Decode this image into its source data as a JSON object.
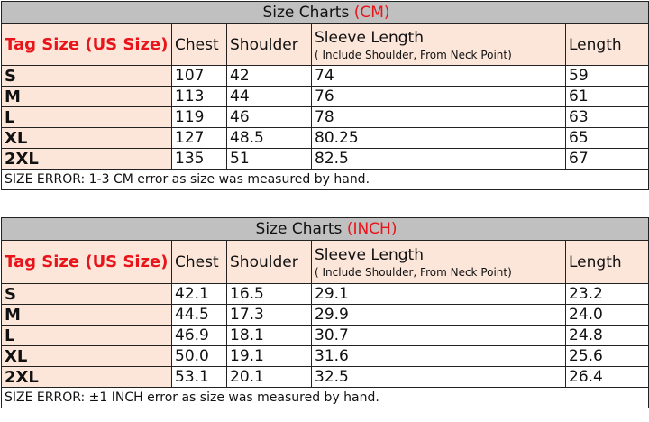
{
  "cm": {
    "title": "Size Charts ",
    "unit": "(CM)",
    "headers": {
      "tag": "Tag Size (US Size)",
      "chest": "Chest",
      "shoulder": "Shoulder",
      "sleeve": "Sleeve Length",
      "sleeve_note": "( Include Shoulder, From Neck Point)",
      "length": "Length"
    },
    "rows": [
      [
        "S",
        "107",
        "42",
        "74",
        "59"
      ],
      [
        "M",
        "113",
        "44",
        "76",
        "61"
      ],
      [
        "L",
        "119",
        "46",
        "78",
        "63"
      ],
      [
        "XL",
        "127",
        "48.5",
        "80.25",
        "65"
      ],
      [
        "2XL",
        "135",
        "51",
        "82.5",
        "67"
      ]
    ],
    "note": "SIZE ERROR: 1-3 CM error as size was measured by hand."
  },
  "inch": {
    "title": "Size Charts ",
    "unit": "(INCH)",
    "headers": {
      "tag": "Tag Size (US Size)",
      "chest": "Chest",
      "shoulder": "Shoulder",
      "sleeve": "Sleeve Length",
      "sleeve_note": "( Include Shoulder, From Neck Point)",
      "length": "Length"
    },
    "rows": [
      [
        "S",
        "42.1",
        "16.5",
        "29.1",
        "23.2"
      ],
      [
        "M",
        "44.5",
        "17.3",
        "29.9",
        "24.0"
      ],
      [
        "L",
        "46.9",
        "18.1",
        "30.7",
        "24.8"
      ],
      [
        "XL",
        "50.0",
        "19.1",
        "31.6",
        "25.6"
      ],
      [
        "2XL",
        "53.1",
        "20.1",
        "32.5",
        "26.4"
      ]
    ],
    "note": "SIZE ERROR: ±1 INCH error as size was measured by hand."
  },
  "colors": {
    "title_bg": "#c0c0c0",
    "header_bg": "#fce5d9",
    "accent_red": "#e8141a"
  }
}
